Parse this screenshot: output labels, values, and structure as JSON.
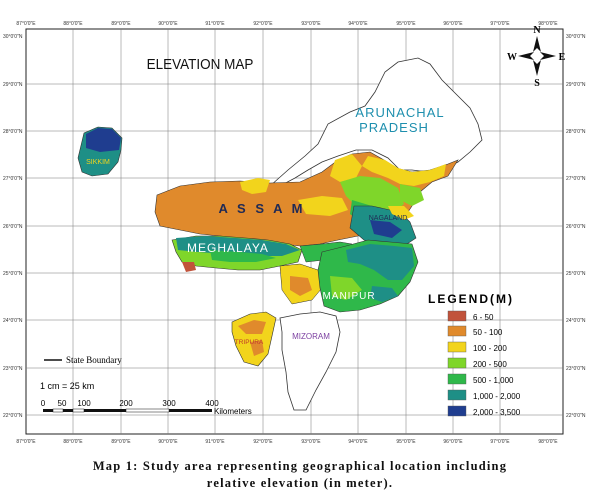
{
  "map": {
    "title": "ELEVATION MAP",
    "compass": {
      "n": "N",
      "s": "S",
      "e": "E",
      "w": "W"
    },
    "lat_ticks": [
      "30°0'0\"N",
      "29°0'0\"N",
      "28°0'0\"N",
      "27°0'0\"N",
      "26°0'0\"N",
      "25°0'0\"N",
      "24°0'0\"N",
      "23°0'0\"N",
      "22°0'0\"N"
    ],
    "lon_ticks": [
      "87°0'0\"E",
      "88°0'0\"E",
      "89°0'0\"E",
      "90°0'0\"E",
      "91°0'0\"E",
      "92°0'0\"E",
      "93°0'0\"E",
      "94°0'0\"E",
      "95°0'0\"E",
      "96°0'0\"E",
      "97°0'0\"E",
      "98°0'0\"E"
    ],
    "regions": {
      "arunachal_line1": "ARUNACHAL",
      "arunachal_line2": "PRADESH",
      "sikkim": "SIKKIM",
      "assam": "A S S A M",
      "nagaland": "NAGALAND",
      "meghalaya": "MEGHALAYA",
      "manipur": "MANIPUR",
      "tripura": "TRIPURA",
      "mizoram": "MIZORAM"
    },
    "state_boundary_label": "State Boundary",
    "scale_text": "1 cm = 25 km",
    "scale_ticks": [
      "0",
      "50",
      "100",
      "200",
      "300",
      "400"
    ],
    "scale_unit": "Kilometers"
  },
  "legend": {
    "title": "LEGEND(M)",
    "items": [
      {
        "label": "6 - 50",
        "color": "#c1533b"
      },
      {
        "label": "50 - 100",
        "color": "#e08a2c"
      },
      {
        "label": "100 - 200",
        "color": "#f2d41c"
      },
      {
        "label": "200 - 500",
        "color": "#7fd62a"
      },
      {
        "label": "500 - 1,000",
        "color": "#2fb84a"
      },
      {
        "label": "1,000 - 2,000",
        "color": "#1e8f86"
      },
      {
        "label": "2,000 - 3,500",
        "color": "#1f3d8f"
      }
    ]
  },
  "caption": {
    "line1": "Map 1: Study area representing geographical location including",
    "line2": "relative elevation (in meter)."
  }
}
